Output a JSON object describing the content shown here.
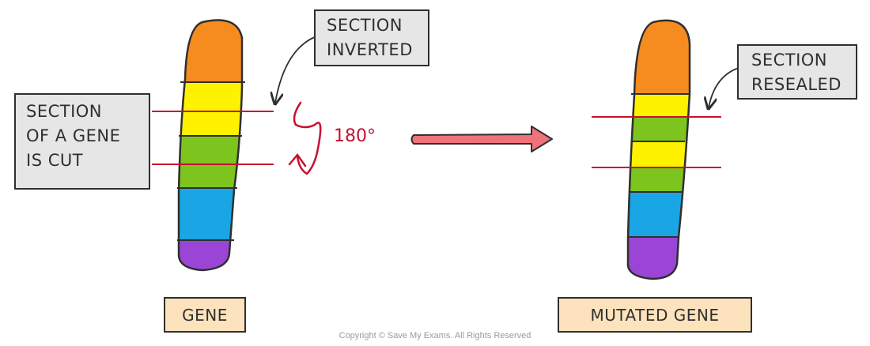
{
  "left": {
    "cut_callout": "SECTION\nOF A GENE\nIS CUT",
    "inverted_callout": "SECTION\nINVERTED",
    "rotation_label": "180°",
    "label": "GENE",
    "segments": [
      "#f68b1f",
      "#fff200",
      "#7dc41f",
      "#1aa6e4",
      "#9b45d6"
    ]
  },
  "right": {
    "resealed_callout": "SECTION\nRESEALED",
    "label": "MUTATED GENE",
    "segments": [
      "#f68b1f",
      "#fff200",
      "#7dc41f",
      "#fff200",
      "#7dc41f",
      "#1aa6e4",
      "#9b45d6"
    ]
  },
  "colors": {
    "cut_line": "#c8102e",
    "arrow": "#f0727a",
    "outline": "#2f2f2f"
  },
  "copyright": "Copyright © Save My Exams. All Rights Reserved"
}
